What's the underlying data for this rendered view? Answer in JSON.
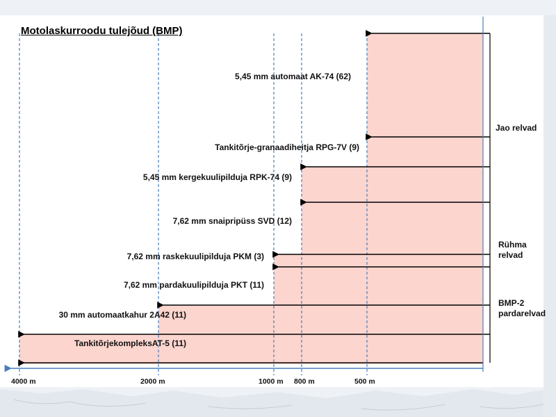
{
  "title": "Motolaskurroodu tulejõud (BMP)",
  "weapons": [
    {
      "label": "5,45 mm automaat AK-74 (62)",
      "range_m": 500
    },
    {
      "label": "Tankitõrje-granaadiheitja RPG-7V (9)",
      "range_m": 500
    },
    {
      "label": "5,45 mm kergekuulipilduja RPK-74 (9)",
      "range_m": 800
    },
    {
      "label": "7,62 mm snaipripüss SVD (12)",
      "range_m": 800
    },
    {
      "label": "7,62 mm raskekuulipilduja PKM (3)",
      "range_m": 1000
    },
    {
      "label": "7,62 mm pardakuulipilduja PKT (11)",
      "range_m": 1000
    },
    {
      "label": "30 mm automaatkahur 2A42 (11)",
      "range_m": 2000
    },
    {
      "label": "TankitõrjekompleksAT-5 (11)",
      "range_m": 4000
    }
  ],
  "groups": [
    {
      "label": "Jao relvad"
    },
    {
      "label": "Rühma relvad"
    },
    {
      "label": "BMP-2 pardarelvad"
    }
  ],
  "axis_ticks": [
    "4000 m",
    "2000 m",
    "1000 m",
    "800 m",
    "500 m"
  ],
  "colors": {
    "fill": "#fcd5ce",
    "axis": "#4a7ebb",
    "dashed": "#4a7ebb",
    "arrow": "#000000"
  }
}
